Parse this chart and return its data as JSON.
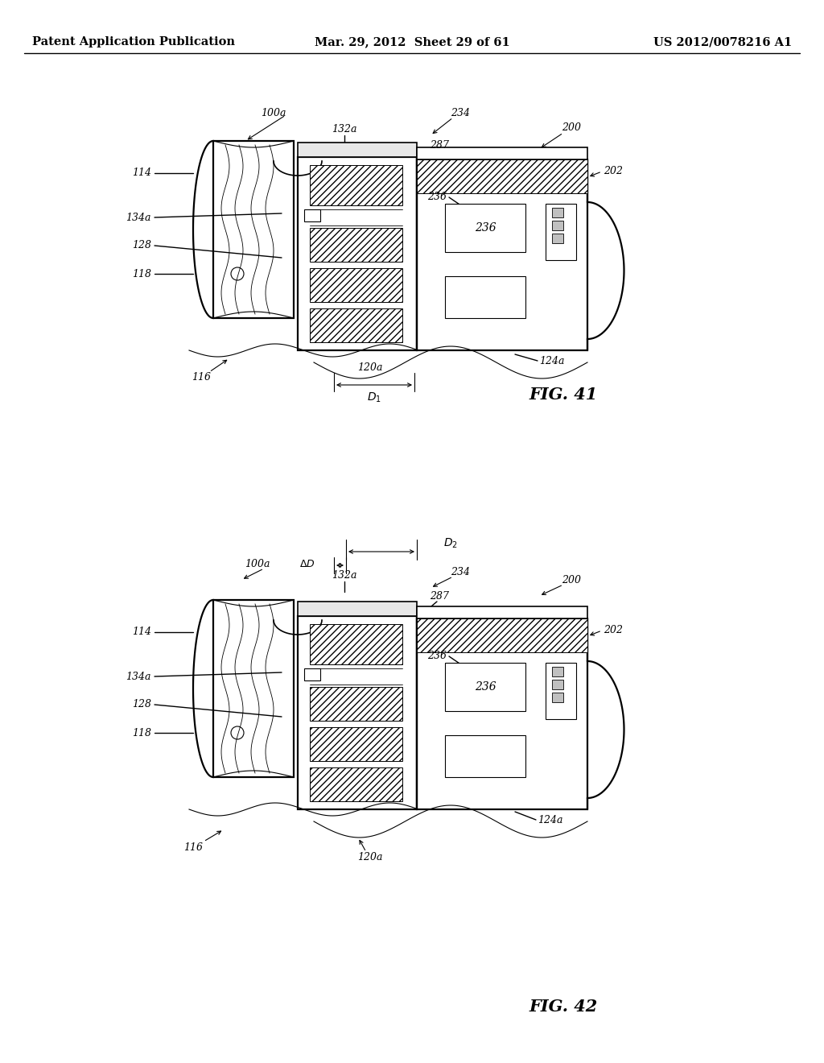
{
  "background_color": "#ffffff",
  "header": {
    "left": "Patent Application Publication",
    "center": "Mar. 29, 2012  Sheet 29 of 61",
    "right": "US 2012/0078216 A1",
    "fontsize": 10.5
  },
  "fig41_title": "FIG. 41",
  "fig42_title": "FIG. 42",
  "line_color": "#000000"
}
